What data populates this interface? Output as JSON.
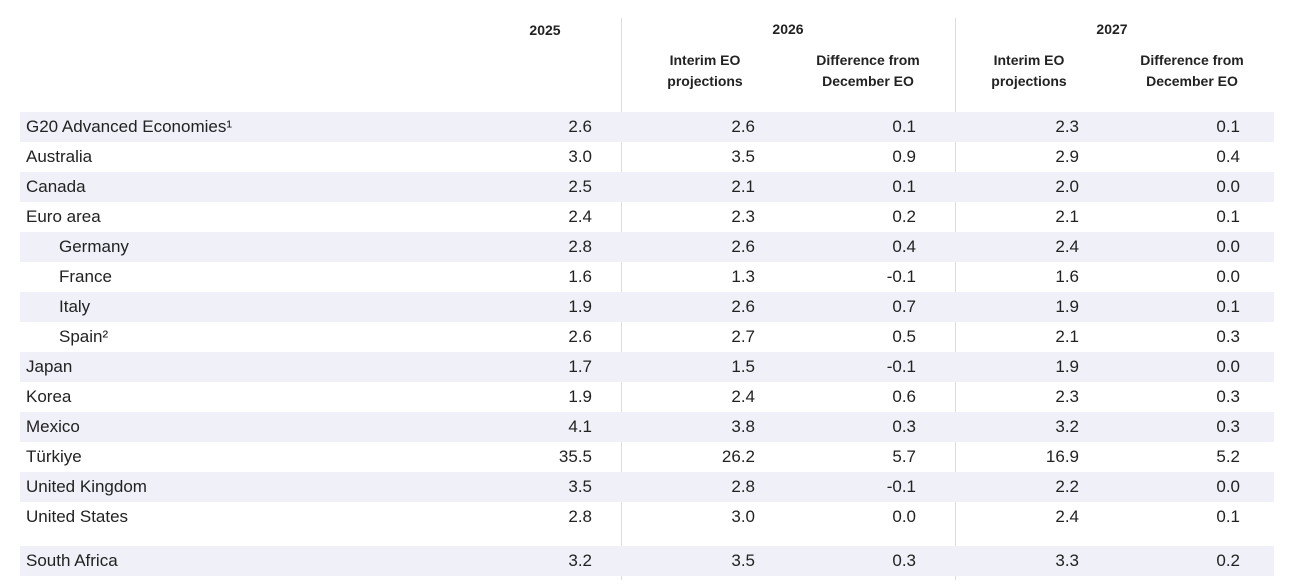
{
  "header": {
    "years": [
      "2025",
      "2026",
      "2027"
    ],
    "subheaders": [
      "Interim EO projections",
      "Difference from December EO",
      "Interim EO projections",
      "Difference from December EO"
    ]
  },
  "groups": [
    [
      {
        "label": "G20 Advanced Economies¹",
        "values": [
          "2.6",
          "2.6",
          "0.1",
          "2.3",
          "0.1"
        ]
      },
      {
        "label": "Australia",
        "values": [
          "3.0",
          "3.5",
          "0.9",
          "2.9",
          "0.4"
        ]
      },
      {
        "label": "Canada",
        "values": [
          "2.5",
          "2.1",
          "0.1",
          "2.0",
          "0.0"
        ]
      },
      {
        "label": "Euro area",
        "values": [
          "2.4",
          "2.3",
          "0.2",
          "2.1",
          "0.1"
        ],
        "members": [
          {
            "label": "Germany",
            "values": [
              "2.8",
              "2.6",
              "0.4",
              "2.4",
              "0.0"
            ]
          },
          {
            "label": "France",
            "values": [
              "1.6",
              "1.3",
              "-0.1",
              "1.6",
              "0.0"
            ]
          },
          {
            "label": "Italy",
            "values": [
              "1.9",
              "2.6",
              "0.7",
              "1.9",
              "0.1"
            ]
          },
          {
            "label": "Spain²",
            "values": [
              "2.6",
              "2.7",
              "0.5",
              "2.1",
              "0.3"
            ]
          }
        ]
      },
      {
        "label": "Japan",
        "values": [
          "1.7",
          "1.5",
          "-0.1",
          "1.9",
          "0.0"
        ]
      },
      {
        "label": "Korea",
        "values": [
          "1.9",
          "2.4",
          "0.6",
          "2.3",
          "0.3"
        ]
      },
      {
        "label": "Mexico",
        "values": [
          "4.1",
          "3.8",
          "0.3",
          "3.2",
          "0.3"
        ]
      },
      {
        "label": "Türkiye",
        "values": [
          "35.5",
          "26.2",
          "5.7",
          "16.9",
          "5.2"
        ]
      },
      {
        "label": "United Kingdom",
        "values": [
          "3.5",
          "2.8",
          "-0.1",
          "2.2",
          "0.0"
        ]
      },
      {
        "label": "United States",
        "values": [
          "2.8",
          "3.0",
          "0.0",
          "2.4",
          "0.1"
        ]
      }
    ],
    [
      {
        "label": "South Africa",
        "values": [
          "3.2",
          "3.5",
          "0.3",
          "3.3",
          "0.2"
        ]
      }
    ]
  ]
}
